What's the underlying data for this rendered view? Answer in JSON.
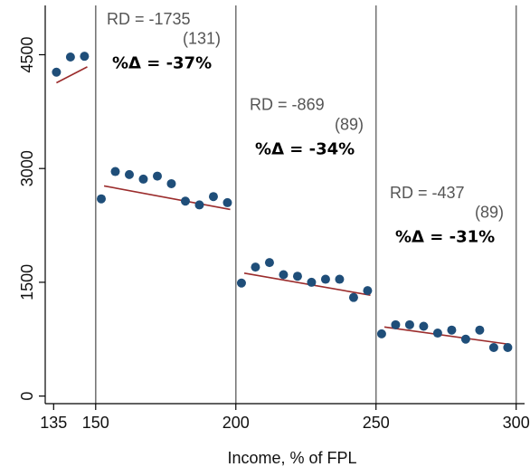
{
  "chart_data": {
    "type": "scatter",
    "title": "",
    "xlabel": "Income, % of FPL",
    "ylabel": "",
    "xlim": [
      132,
      303
    ],
    "ylim": [
      -100,
      5150
    ],
    "x_ticks": [
      135,
      150,
      200,
      250,
      300
    ],
    "y_ticks": [
      0,
      1500,
      3000,
      4500
    ],
    "cutoffs": [
      150,
      200,
      250,
      300
    ],
    "grid": false,
    "legend": "none",
    "colors": {
      "points": "#1f4e79",
      "fit": "#9b2c2c",
      "cutoff": "#777777",
      "axis": "#000000"
    },
    "points": [
      {
        "x": 136,
        "y": 4270
      },
      {
        "x": 141,
        "y": 4470
      },
      {
        "x": 146,
        "y": 4480
      },
      {
        "x": 152,
        "y": 2600
      },
      {
        "x": 157,
        "y": 2960
      },
      {
        "x": 162,
        "y": 2920
      },
      {
        "x": 167,
        "y": 2860
      },
      {
        "x": 172,
        "y": 2900
      },
      {
        "x": 177,
        "y": 2800
      },
      {
        "x": 182,
        "y": 2570
      },
      {
        "x": 187,
        "y": 2520
      },
      {
        "x": 192,
        "y": 2630
      },
      {
        "x": 197,
        "y": 2550
      },
      {
        "x": 202,
        "y": 1490
      },
      {
        "x": 207,
        "y": 1700
      },
      {
        "x": 212,
        "y": 1760
      },
      {
        "x": 217,
        "y": 1600
      },
      {
        "x": 222,
        "y": 1580
      },
      {
        "x": 227,
        "y": 1500
      },
      {
        "x": 232,
        "y": 1540
      },
      {
        "x": 237,
        "y": 1540
      },
      {
        "x": 242,
        "y": 1300
      },
      {
        "x": 247,
        "y": 1390
      },
      {
        "x": 252,
        "y": 820
      },
      {
        "x": 257,
        "y": 940
      },
      {
        "x": 262,
        "y": 940
      },
      {
        "x": 267,
        "y": 920
      },
      {
        "x": 272,
        "y": 830
      },
      {
        "x": 277,
        "y": 870
      },
      {
        "x": 282,
        "y": 750
      },
      {
        "x": 287,
        "y": 870
      },
      {
        "x": 292,
        "y": 640
      },
      {
        "x": 297,
        "y": 640
      }
    ],
    "fit_lines": [
      {
        "x": [
          136,
          147
        ],
        "y": [
          4130,
          4340
        ]
      },
      {
        "x": [
          153,
          198
        ],
        "y": [
          2770,
          2460
        ]
      },
      {
        "x": [
          203,
          248
        ],
        "y": [
          1620,
          1330
        ]
      },
      {
        "x": [
          253,
          298
        ],
        "y": [
          910,
          680
        ]
      }
    ],
    "annotations": [
      {
        "rd": "RD = -1735",
        "se": "(131)",
        "pct": "%Δ = -37%",
        "x": 152,
        "y_rd": 4900,
        "y_se": 4640,
        "y_pct": 4320
      },
      {
        "rd": "RD = -869",
        "se": "(89)",
        "pct": "%Δ = -34%",
        "x": 203,
        "y_rd": 3770,
        "y_se": 3510,
        "y_pct": 3190
      },
      {
        "rd": "RD = -437",
        "se": "(89)",
        "pct": "%Δ = -31%",
        "x": 253,
        "y_rd": 2610,
        "y_se": 2350,
        "y_pct": 2030
      }
    ]
  }
}
